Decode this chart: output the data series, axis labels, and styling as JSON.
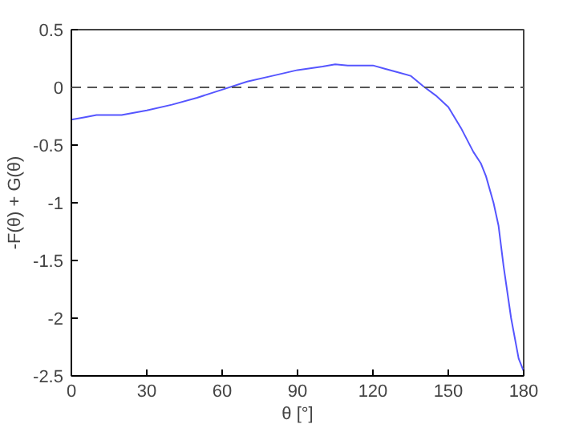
{
  "chart_data": {
    "type": "line",
    "xlabel": "θ [°]",
    "ylabel": "-F(θ) + G(θ)",
    "xlim": [
      0,
      180
    ],
    "ylim": [
      -2.5,
      0.5
    ],
    "xticks": [
      0,
      30,
      60,
      90,
      120,
      150,
      180
    ],
    "yticks": [
      -2.5,
      -2,
      -1.5,
      -1,
      -0.5,
      0,
      0.5
    ],
    "grid": false,
    "marker": "none",
    "line_style": "solid",
    "ref_lines": [
      {
        "axis": "y",
        "value": 0,
        "label": null,
        "color": "#555555",
        "line_style": "dashed"
      }
    ],
    "series": [
      {
        "color": "#5555ff",
        "x": [
          0,
          5,
          10,
          20,
          30,
          40,
          50,
          60,
          70,
          80,
          90,
          100,
          105,
          110,
          120,
          125,
          130,
          135,
          140,
          145,
          150,
          155,
          160,
          163,
          165,
          168,
          170,
          172,
          175,
          178,
          180
        ],
        "values": [
          -0.28,
          -0.26,
          -0.24,
          -0.24,
          -0.2,
          -0.15,
          -0.09,
          -0.02,
          0.05,
          0.1,
          0.15,
          0.18,
          0.2,
          0.19,
          0.19,
          0.16,
          0.13,
          0.1,
          0.01,
          -0.07,
          -0.17,
          -0.35,
          -0.56,
          -0.66,
          -0.77,
          -1.0,
          -1.2,
          -1.55,
          -2.0,
          -2.35,
          -2.46
        ]
      }
    ]
  }
}
